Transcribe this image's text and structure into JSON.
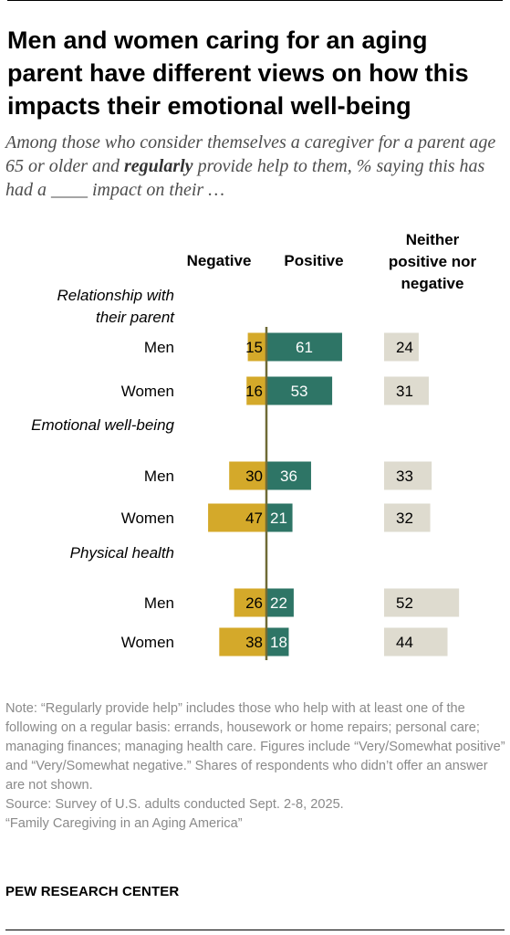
{
  "title": "Men and women caring for an aging parent have different views on how this impacts their emotional well-being",
  "subtitle": {
    "before": "Among those who consider themselves a caregiver for a parent age 65 or older and ",
    "emphasis": "regularly",
    "after": " provide help to them, % saying this has had a ____ impact on their …"
  },
  "colors": {
    "negative": "#d4a92a",
    "positive": "#2e7566",
    "neither": "#dedbcf",
    "axis": "#6f6a36"
  },
  "chart_data": {
    "type": "bar",
    "orientation": "horizontal-diverging",
    "column_headers": {
      "negative": "Negative",
      "positive": "Positive",
      "neither": [
        "Neither",
        "positive nor",
        "negative"
      ]
    },
    "groups": [
      {
        "label": [
          "Relationship with",
          "their parent"
        ],
        "rows": [
          {
            "label": "Men",
            "negative": 15,
            "positive": 61,
            "neither": 24
          },
          {
            "label": "Women",
            "negative": 16,
            "positive": 53,
            "neither": 31
          }
        ]
      },
      {
        "label": [
          "Emotional well-being"
        ],
        "rows": [
          {
            "label": "Men",
            "negative": 30,
            "positive": 36,
            "neither": 33
          },
          {
            "label": "Women",
            "negative": 47,
            "positive": 21,
            "neither": 32
          }
        ]
      },
      {
        "label": [
          "Physical health"
        ],
        "rows": [
          {
            "label": "Men",
            "negative": 26,
            "positive": 22,
            "neither": 52
          },
          {
            "label": "Women",
            "negative": 38,
            "positive": 18,
            "neither": 44
          }
        ]
      }
    ]
  },
  "notes": {
    "note": "Note: “Regularly provide help” includes those who help with at least one of the following on a regular basis: errands, housework or home repairs; personal care; managing finances; managing health care. Figures include “Very/Somewhat positive” and “Very/Somewhat negative.” Shares of respondents who didn’t offer an answer are not shown.",
    "source": "Source: Survey of U.S. adults conducted Sept. 2-8, 2025.",
    "report": "“Family Caregiving in an Aging America”"
  },
  "brand": "PEW RESEARCH CENTER"
}
